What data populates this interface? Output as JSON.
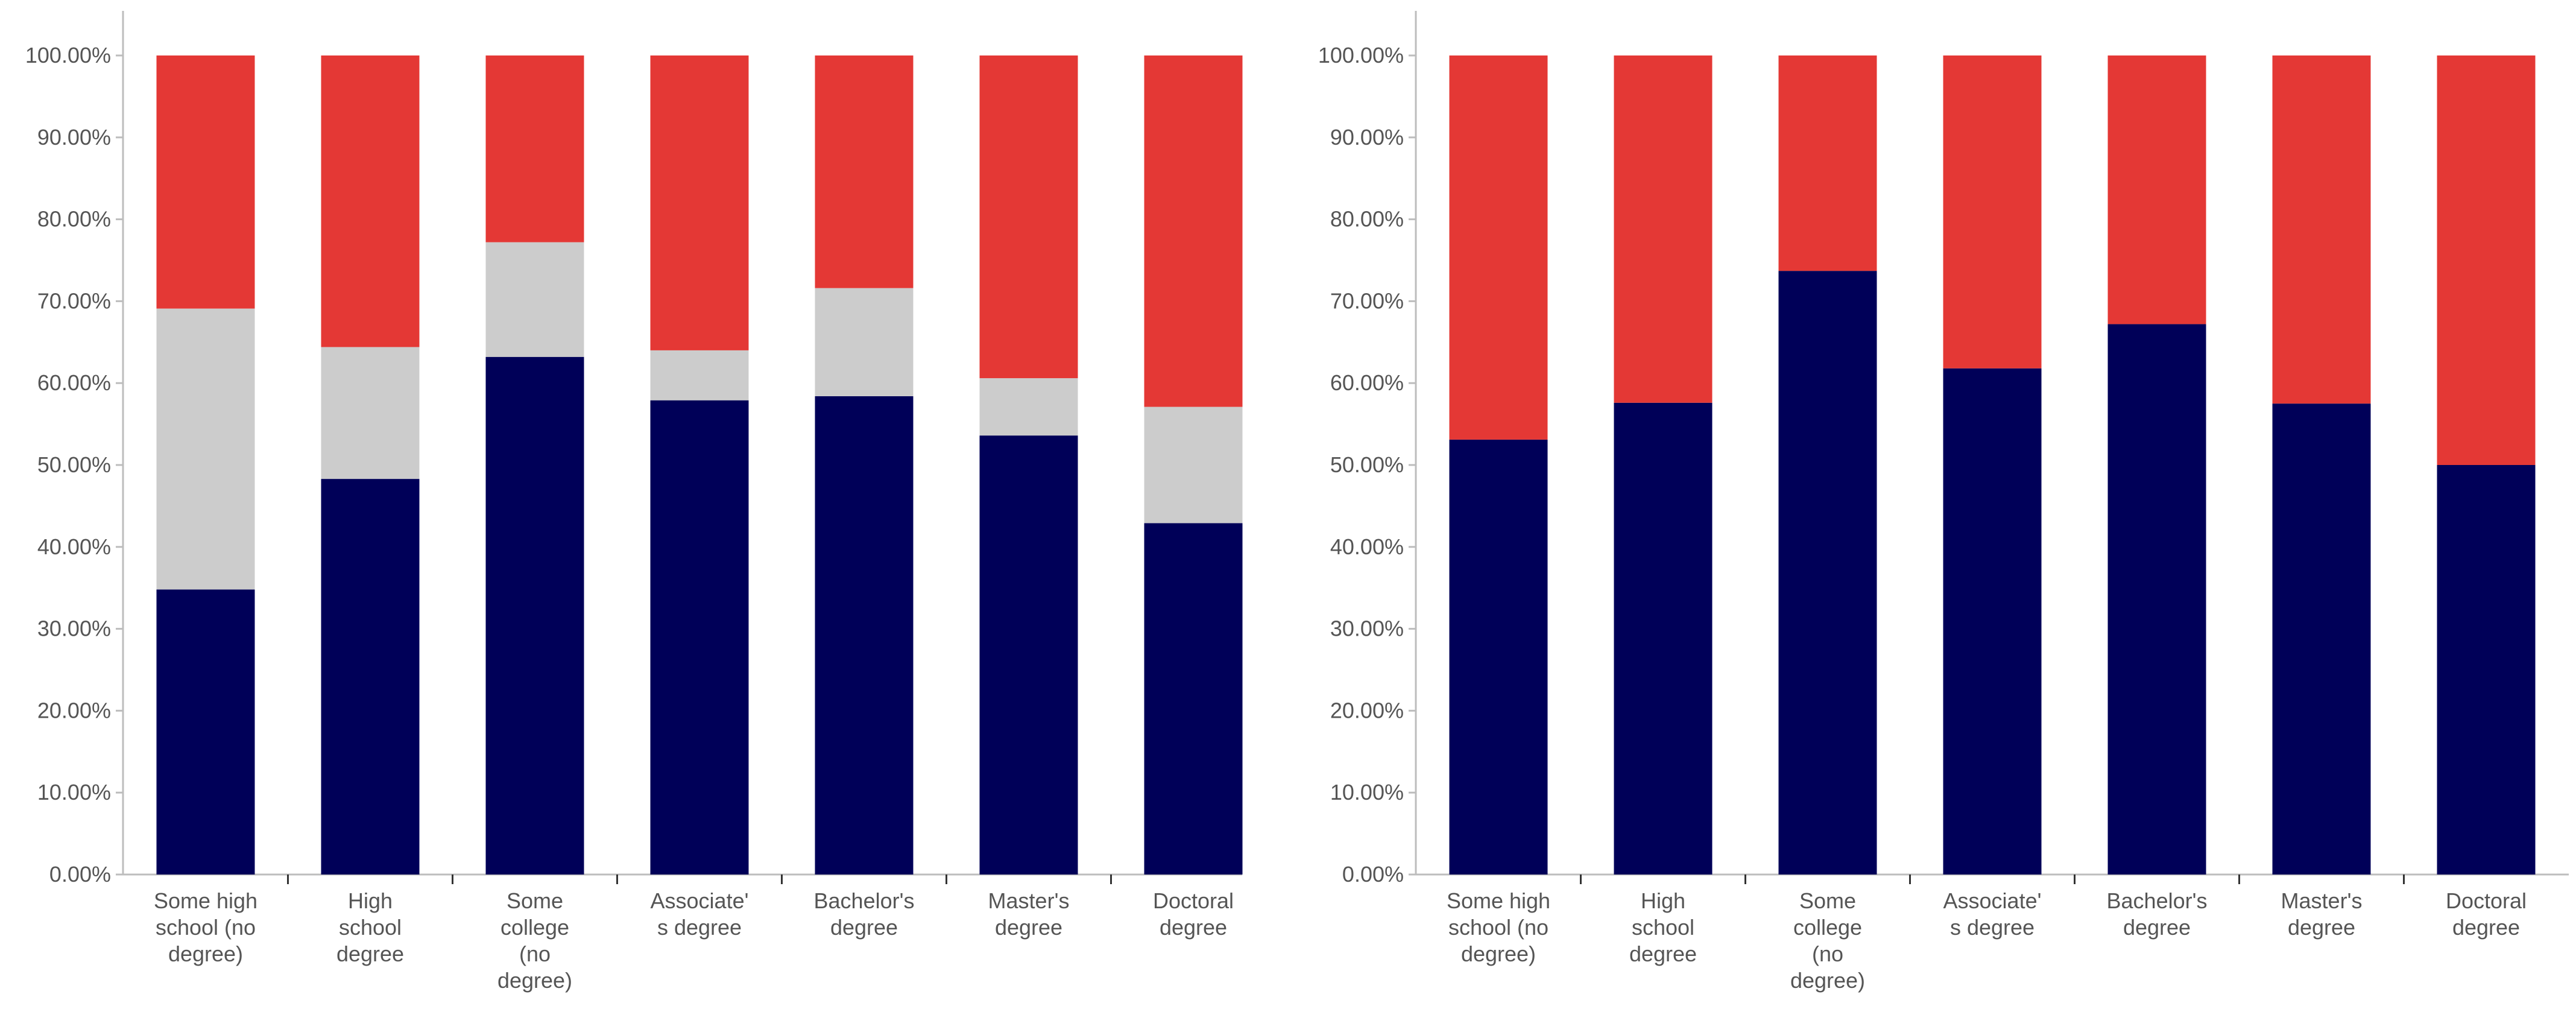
{
  "charts": [
    {
      "type": "bar",
      "stacked": true,
      "categories": [
        [
          "Some high",
          "school (no",
          "degree)"
        ],
        [
          "High",
          "school",
          "degree"
        ],
        [
          "Some",
          "college",
          "(no",
          "degree)"
        ],
        [
          "Associate'",
          "s degree"
        ],
        [
          "Bachelor's",
          "degree"
        ],
        [
          "Master's",
          "degree"
        ],
        [
          "Doctoral",
          "degree"
        ]
      ],
      "ylim": [
        0,
        100
      ],
      "y_ticks": [
        "0.00%",
        "10.00%",
        "20.00%",
        "30.00%",
        "40.00%",
        "50.00%",
        "60.00%",
        "70.00%",
        "80.00%",
        "90.00%",
        "100.00%"
      ],
      "series": [
        {
          "color": "#000058",
          "values": [
            34.8,
            48.3,
            63.2,
            57.9,
            58.4,
            53.6,
            42.9
          ]
        },
        {
          "color": "#cccccc",
          "values": [
            34.3,
            16.1,
            14.0,
            6.1,
            13.2,
            7.0,
            14.2
          ]
        },
        {
          "color": "#e43835",
          "values": [
            30.9,
            35.6,
            22.8,
            36.0,
            28.4,
            39.4,
            42.9
          ]
        }
      ]
    },
    {
      "type": "bar",
      "stacked": true,
      "categories": [
        [
          "Some high",
          "school (no",
          "degree)"
        ],
        [
          "High",
          "school",
          "degree"
        ],
        [
          "Some",
          "college",
          "(no",
          "degree)"
        ],
        [
          "Associate'",
          "s degree"
        ],
        [
          "Bachelor's",
          "degree"
        ],
        [
          "Master's",
          "degree"
        ],
        [
          "Doctoral",
          "degree"
        ]
      ],
      "ylim": [
        0,
        100
      ],
      "y_ticks": [
        "0.00%",
        "10.00%",
        "20.00%",
        "30.00%",
        "40.00%",
        "50.00%",
        "60.00%",
        "70.00%",
        "80.00%",
        "90.00%",
        "100.00%"
      ],
      "series": [
        {
          "color": "#000058",
          "values": [
            53.1,
            57.6,
            73.7,
            61.8,
            67.2,
            57.5,
            50.0
          ]
        },
        {
          "color": "#e43835",
          "values": [
            46.9,
            42.4,
            26.3,
            38.2,
            32.8,
            42.5,
            50.0
          ]
        }
      ]
    }
  ]
}
